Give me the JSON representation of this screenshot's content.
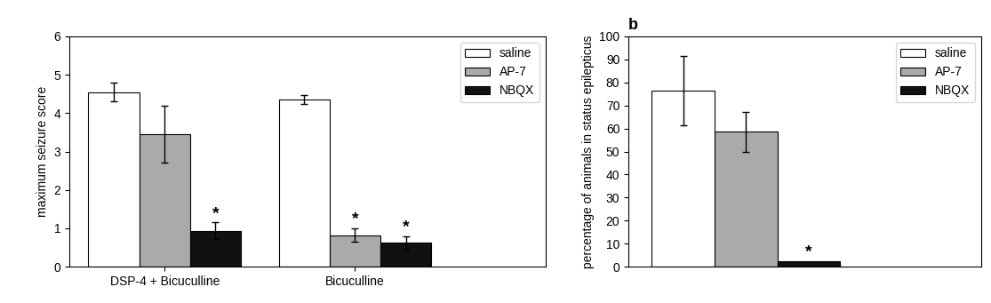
{
  "chart_data": [
    {
      "type": "bar",
      "categories": [
        "DSP-4 + Bicuculline",
        "Bicuculline"
      ],
      "series": [
        {
          "name": "saline",
          "color": "#ffffff",
          "values": [
            4.55,
            4.35
          ],
          "errors": [
            0.25,
            0.12
          ]
        },
        {
          "name": "AP-7",
          "color": "#aaaaaa",
          "values": [
            3.45,
            0.82
          ],
          "errors": [
            0.75,
            0.18
          ]
        },
        {
          "name": "NBQX",
          "color": "#111111",
          "values": [
            0.93,
            0.62
          ],
          "errors": [
            0.22,
            0.18
          ]
        }
      ],
      "ylabel": "maximum seizure score",
      "ylim": [
        0,
        6
      ],
      "yticks": [
        0,
        1,
        2,
        3,
        4,
        5,
        6
      ],
      "legend": "upper right",
      "annotations": [
        {
          "text": "*",
          "category": "DSP-4 + Bicuculline",
          "series": "NBQX"
        },
        {
          "text": "*",
          "category": "Bicuculline",
          "series": "AP-7"
        },
        {
          "text": "*",
          "category": "Bicuculline",
          "series": "NBQX"
        }
      ]
    },
    {
      "type": "bar",
      "title": "b",
      "categories": [
        null
      ],
      "series": [
        {
          "name": "saline",
          "color": "#ffffff",
          "values": [
            76.5
          ],
          "errors": [
            15.0
          ]
        },
        {
          "name": "AP-7",
          "color": "#aaaaaa",
          "values": [
            58.5
          ],
          "errors": [
            8.5
          ]
        },
        {
          "name": "NBQX",
          "color": "#111111",
          "values": [
            2.5
          ],
          "errors": [
            0.0
          ]
        }
      ],
      "ylabel": "percentage of animals in status epilepticus",
      "ylim": [
        0,
        100
      ],
      "yticks": [
        0,
        10,
        20,
        30,
        40,
        50,
        60,
        70,
        80,
        90,
        100
      ],
      "legend": "upper right",
      "tick_labels": "y",
      "annotations": [
        {
          "text": "*",
          "category": null,
          "series": "NBQX"
        }
      ]
    }
  ]
}
